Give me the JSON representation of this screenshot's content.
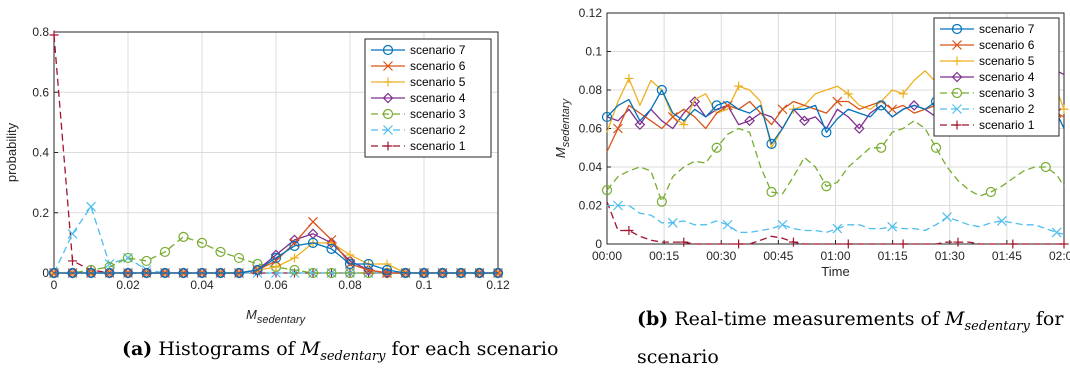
{
  "colors": {
    "scenario 7": "#0072BD",
    "scenario 6": "#D95319",
    "scenario 5": "#EDB120",
    "scenario 4": "#7E2F8E",
    "scenario 3": "#77AC30",
    "scenario 2": "#4DBEEE",
    "scenario 1": "#A2142F"
  },
  "captions": {
    "a": {
      "label": "(a)",
      "text_before": "Histograms of ",
      "symbol_main": "M",
      "symbol_sub": "sedentary",
      "text_after": " for each scenario"
    },
    "b": {
      "label": "(b)",
      "text_before": "Real-time measurements of ",
      "symbol_main": "M",
      "symbol_sub": "sedentary",
      "text_after": " for scenario"
    }
  },
  "chart_data": [
    {
      "type": "line",
      "title": "",
      "xlabel_main": "M",
      "xlabel_sub": "sedentary",
      "ylabel": "probability",
      "xlim": [
        0,
        0.12
      ],
      "ylim": [
        0,
        0.8
      ],
      "xticks": [
        "0",
        "0.02",
        "0.04",
        "0.06",
        "0.08",
        "0.1",
        "0.12"
      ],
      "yticks": [
        "0",
        "0.2",
        "0.4",
        "0.6",
        "0.8"
      ],
      "grid": true,
      "legend_position": "top-right",
      "x": [
        0,
        0.005,
        0.01,
        0.015,
        0.02,
        0.025,
        0.03,
        0.035,
        0.04,
        0.045,
        0.05,
        0.055,
        0.06,
        0.065,
        0.07,
        0.075,
        0.08,
        0.085,
        0.09,
        0.095,
        0.1,
        0.105,
        0.11,
        0.115,
        0.12
      ],
      "series": [
        {
          "name": "scenario 7",
          "marker": "o",
          "dash": "solid",
          "values": [
            0,
            0,
            0,
            0,
            0,
            0,
            0,
            0,
            0,
            0,
            0,
            0.01,
            0.05,
            0.09,
            0.1,
            0.08,
            0.03,
            0.03,
            0.01,
            0,
            0,
            0,
            0,
            0,
            0
          ]
        },
        {
          "name": "scenario 6",
          "marker": "x",
          "dash": "solid",
          "values": [
            0,
            0,
            0,
            0,
            0,
            0,
            0,
            0,
            0,
            0,
            0,
            0.01,
            0.04,
            0.1,
            0.17,
            0.11,
            0.03,
            0.01,
            0,
            0,
            0,
            0,
            0,
            0,
            0
          ]
        },
        {
          "name": "scenario 5",
          "marker": "+",
          "dash": "solid",
          "values": [
            0,
            0,
            0,
            0,
            0,
            0,
            0,
            0,
            0,
            0,
            0,
            0.01,
            0.02,
            0.05,
            0.1,
            0.1,
            0.06,
            0.03,
            0.03,
            0,
            0,
            0,
            0,
            0,
            0
          ]
        },
        {
          "name": "scenario 4",
          "marker": "diamond",
          "dash": "solid",
          "values": [
            0,
            0,
            0,
            0,
            0,
            0,
            0,
            0,
            0,
            0,
            0,
            0.01,
            0.06,
            0.11,
            0.13,
            0.1,
            0.04,
            0.01,
            0,
            0,
            0,
            0,
            0,
            0,
            0
          ]
        },
        {
          "name": "scenario 3",
          "marker": "o",
          "dash": "dash",
          "values": [
            0,
            0,
            0.01,
            0.02,
            0.05,
            0.04,
            0.07,
            0.12,
            0.1,
            0.07,
            0.05,
            0.03,
            0.02,
            0.01,
            0,
            0,
            0,
            0,
            0,
            0,
            0,
            0,
            0,
            0,
            0
          ]
        },
        {
          "name": "scenario 2",
          "marker": "x",
          "dash": "dash",
          "values": [
            0,
            0.13,
            0.22,
            0.03,
            0.05,
            0.01,
            0,
            0,
            0,
            0,
            0,
            0,
            0,
            0,
            0,
            0,
            0,
            0,
            0,
            0,
            0,
            0,
            0,
            0,
            0
          ]
        },
        {
          "name": "scenario 1",
          "marker": "+",
          "dash": "dash",
          "values": [
            0.79,
            0.04,
            0.01,
            0,
            0,
            0,
            0,
            0,
            0,
            0,
            0,
            0,
            0,
            0,
            0,
            0,
            0,
            0,
            0,
            0,
            0,
            0,
            0,
            0,
            0
          ]
        }
      ]
    },
    {
      "type": "line",
      "title": "",
      "xlabel": "Time",
      "ylabel_main": "M",
      "ylabel_sub": "sedentary",
      "xlim": [
        0,
        125
      ],
      "ylim": [
        0,
        0.12
      ],
      "xticks": [
        "00:00",
        "00:15",
        "00:30",
        "00:45",
        "01:00",
        "01:15",
        "01:30",
        "01:45",
        "02:00"
      ],
      "yticks": [
        "0",
        "0.02",
        "0.04",
        "0.06",
        "0.08",
        "0.1",
        "0.12"
      ],
      "x_unit": "minutes",
      "grid": true,
      "legend_position": "top-right",
      "x": [
        0,
        3,
        6,
        9,
        12,
        15,
        18,
        21,
        24,
        27,
        30,
        33,
        36,
        39,
        42,
        45,
        48,
        51,
        54,
        57,
        60,
        63,
        66,
        69,
        72,
        75,
        78,
        81,
        84,
        87,
        90,
        93,
        96,
        99,
        102,
        105,
        108,
        111,
        114,
        117,
        120,
        123,
        125
      ],
      "series": [
        {
          "name": "scenario 7",
          "marker": "o",
          "dash": "solid",
          "values": [
            0.066,
            0.072,
            0.075,
            0.064,
            0.07,
            0.08,
            0.068,
            0.064,
            0.07,
            0.066,
            0.072,
            0.074,
            0.07,
            0.068,
            0.072,
            0.052,
            0.06,
            0.07,
            0.07,
            0.072,
            0.058,
            0.065,
            0.07,
            0.068,
            0.066,
            0.072,
            0.066,
            0.07,
            0.072,
            0.07,
            0.074,
            0.07,
            0.066,
            0.06,
            0.064,
            0.07,
            0.066,
            0.072,
            0.07,
            0.068,
            0.066,
            0.068,
            0.06
          ]
        },
        {
          "name": "scenario 6",
          "marker": "x",
          "dash": "solid",
          "values": [
            0.048,
            0.06,
            0.072,
            0.068,
            0.064,
            0.06,
            0.066,
            0.07,
            0.066,
            0.06,
            0.068,
            0.072,
            0.07,
            0.074,
            0.068,
            0.062,
            0.07,
            0.074,
            0.072,
            0.07,
            0.068,
            0.074,
            0.074,
            0.07,
            0.072,
            0.074,
            0.07,
            0.072,
            0.068,
            0.07,
            0.072,
            0.074,
            0.072,
            0.07,
            0.068,
            0.07,
            0.072,
            0.07,
            0.066,
            0.068,
            0.066,
            0.068,
            0.066
          ]
        },
        {
          "name": "scenario 5",
          "marker": "+",
          "dash": "solid",
          "values": [
            0.058,
            0.074,
            0.086,
            0.072,
            0.085,
            0.08,
            0.066,
            0.062,
            0.075,
            0.078,
            0.068,
            0.07,
            0.082,
            0.08,
            0.074,
            0.05,
            0.06,
            0.07,
            0.072,
            0.078,
            0.08,
            0.082,
            0.078,
            0.072,
            0.07,
            0.074,
            0.08,
            0.078,
            0.085,
            0.09,
            0.084,
            0.076,
            0.08,
            0.074,
            0.07,
            0.072,
            0.078,
            0.08,
            0.078,
            0.075,
            0.078,
            0.08,
            0.07
          ]
        },
        {
          "name": "scenario 4",
          "marker": "diamond",
          "dash": "solid",
          "values": [
            0.066,
            0.064,
            0.07,
            0.062,
            0.07,
            0.064,
            0.06,
            0.068,
            0.074,
            0.066,
            0.07,
            0.072,
            0.062,
            0.064,
            0.068,
            0.066,
            0.06,
            0.07,
            0.064,
            0.066,
            0.06,
            0.07,
            0.066,
            0.06,
            0.068,
            0.072,
            0.066,
            0.07,
            0.072,
            0.07,
            0.066,
            0.07,
            0.072,
            0.066,
            0.07,
            0.074,
            0.066,
            0.07,
            0.076,
            0.072,
            0.072,
            0.09,
            0.088
          ]
        },
        {
          "name": "scenario 3",
          "marker": "o",
          "dash": "dash",
          "values": [
            0.028,
            0.035,
            0.038,
            0.04,
            0.038,
            0.022,
            0.035,
            0.04,
            0.043,
            0.042,
            0.05,
            0.057,
            0.06,
            0.058,
            0.04,
            0.027,
            0.026,
            0.035,
            0.045,
            0.04,
            0.03,
            0.032,
            0.04,
            0.045,
            0.05,
            0.05,
            0.058,
            0.06,
            0.064,
            0.06,
            0.05,
            0.04,
            0.033,
            0.028,
            0.025,
            0.027,
            0.03,
            0.034,
            0.038,
            0.04,
            0.04,
            0.036,
            0.03
          ]
        },
        {
          "name": "scenario 2",
          "marker": "x",
          "dash": "dash",
          "values": [
            0.02,
            0.02,
            0.02,
            0.016,
            0.015,
            0.011,
            0.011,
            0.012,
            0.01,
            0.01,
            0.012,
            0.01,
            0.006,
            0.006,
            0.007,
            0.008,
            0.01,
            0.008,
            0.007,
            0.007,
            0.006,
            0.008,
            0.01,
            0.01,
            0.008,
            0.008,
            0.009,
            0.008,
            0.008,
            0.007,
            0.01,
            0.014,
            0.012,
            0.01,
            0.009,
            0.011,
            0.012,
            0.011,
            0.01,
            0.01,
            0.008,
            0.006,
            0.005
          ]
        },
        {
          "name": "scenario 1",
          "marker": "+",
          "dash": "dash",
          "values": [
            0.022,
            0.007,
            0.007,
            0.004,
            0.002,
            0.001,
            0.001,
            0.001,
            0,
            0,
            0,
            0,
            0,
            0,
            0.002,
            0.004,
            0.003,
            0.001,
            0,
            0,
            0,
            0,
            0,
            0,
            0,
            0,
            0,
            0,
            0,
            0,
            0,
            0.001,
            0.001,
            0.001,
            0,
            0,
            0,
            0,
            0,
            0,
            0,
            0,
            0
          ]
        }
      ]
    }
  ]
}
